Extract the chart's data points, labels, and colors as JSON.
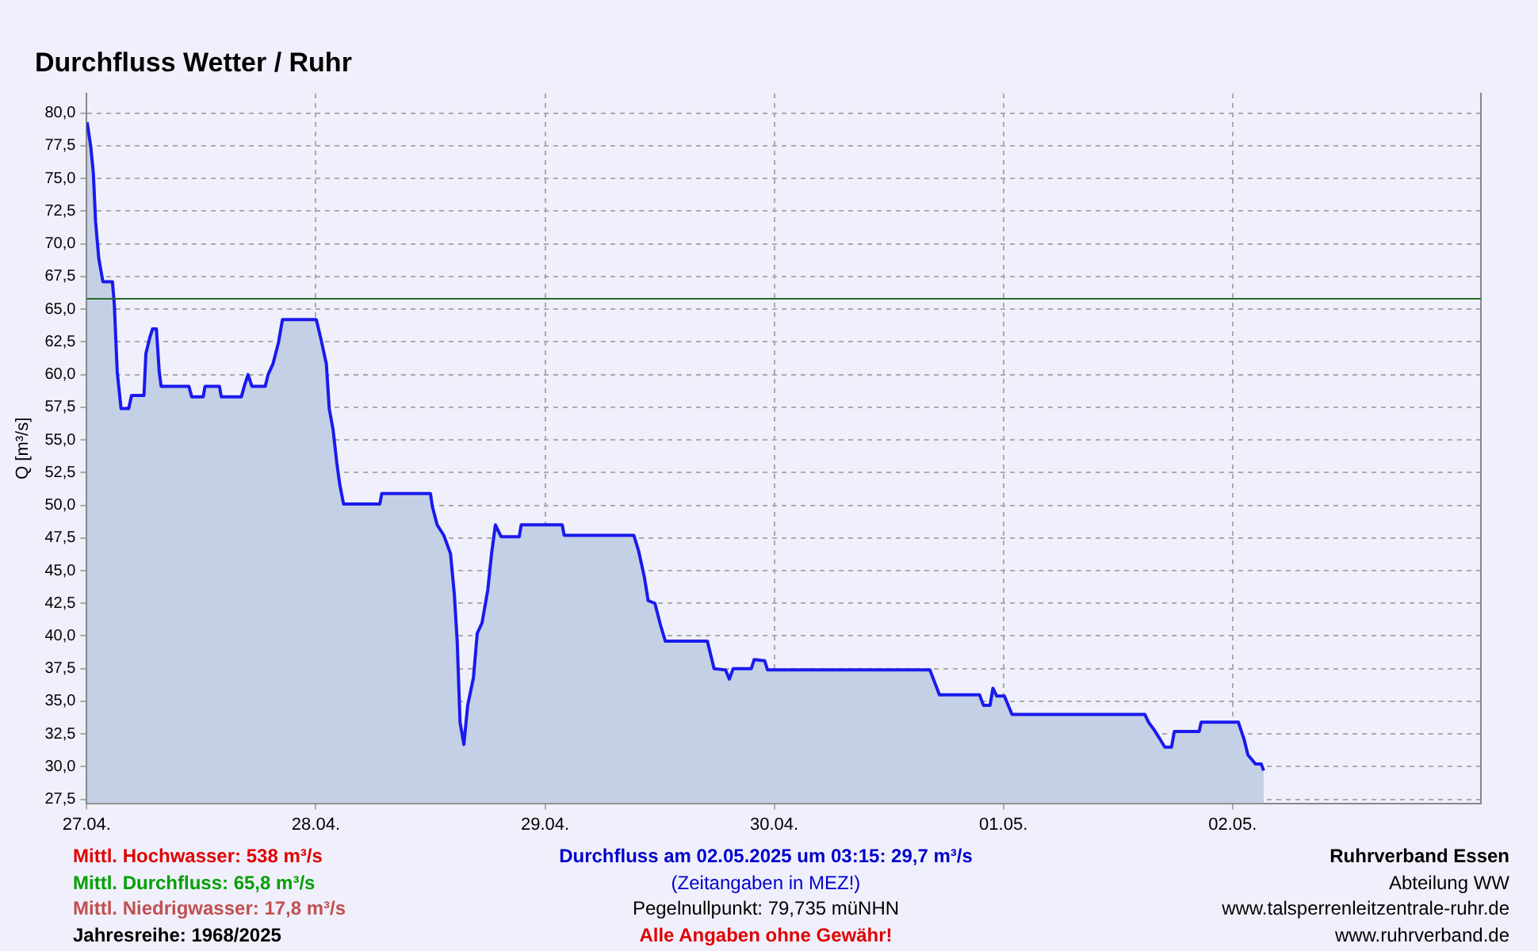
{
  "chart_data": {
    "type": "area",
    "title": "Durchfluss Wetter / Ruhr",
    "ylabel": "Q [m³/s]",
    "x": [
      "2025-04-27T00:03",
      "2025-04-27T00:26",
      "2025-04-27T00:42",
      "2025-04-27T00:56",
      "2025-04-27T01:16",
      "2025-04-27T01:42",
      "2025-04-27T02:42",
      "2025-04-27T02:54",
      "2025-04-27T03:12",
      "2025-04-27T03:36",
      "2025-04-27T04:24",
      "2025-04-27T04:42",
      "2025-04-27T06:00",
      "2025-04-27T06:12",
      "2025-04-27T06:36",
      "2025-04-27T06:54",
      "2025-04-27T07:18",
      "2025-04-27T07:36",
      "2025-04-27T07:48",
      "2025-04-27T10:42",
      "2025-04-27T11:00",
      "2025-04-27T12:12",
      "2025-04-27T12:24",
      "2025-04-27T13:54",
      "2025-04-27T14:06",
      "2025-04-27T16:12",
      "2025-04-27T16:30",
      "2025-04-27T16:54",
      "2025-04-27T17:18",
      "2025-04-27T18:42",
      "2025-04-27T19:00",
      "2025-04-27T19:30",
      "2025-04-27T20:06",
      "2025-04-27T20:30",
      "2025-04-28T00:03",
      "2025-04-28T00:36",
      "2025-04-28T01:06",
      "2025-04-28T01:24",
      "2025-04-28T01:48",
      "2025-04-28T02:12",
      "2025-04-28T02:30",
      "2025-04-28T02:54",
      "2025-04-28T06:42",
      "2025-04-28T06:54",
      "2025-04-28T12:00",
      "2025-04-28T12:12",
      "2025-04-28T12:42",
      "2025-04-28T13:24",
      "2025-04-28T14:06",
      "2025-04-28T14:30",
      "2025-04-28T14:48",
      "2025-04-28T15:06",
      "2025-04-28T15:30",
      "2025-04-28T15:54",
      "2025-04-28T16:30",
      "2025-04-28T16:54",
      "2025-04-28T17:24",
      "2025-04-28T18:00",
      "2025-04-28T18:24",
      "2025-04-28T18:48",
      "2025-04-28T19:24",
      "2025-04-28T21:18",
      "2025-04-28T21:30",
      "2025-04-29T01:48",
      "2025-04-29T02:00",
      "2025-04-29T09:18",
      "2025-04-29T09:48",
      "2025-04-29T10:24",
      "2025-04-29T10:48",
      "2025-04-29T11:30",
      "2025-04-29T12:06",
      "2025-04-29T12:36",
      "2025-04-29T17:00",
      "2025-04-29T17:42",
      "2025-04-29T18:54",
      "2025-04-29T19:18",
      "2025-04-29T19:42",
      "2025-04-29T21:36",
      "2025-04-29T21:54",
      "2025-04-29T23:00",
      "2025-04-29T23:18",
      "2025-04-30T16:18",
      "2025-04-30T17:18",
      "2025-04-30T21:30",
      "2025-04-30T21:54",
      "2025-04-30T22:36",
      "2025-04-30T22:54",
      "2025-04-30T23:18",
      "2025-05-01T00:06",
      "2025-05-01T00:54",
      "2025-05-01T14:48",
      "2025-05-01T15:12",
      "2025-05-01T15:48",
      "2025-05-01T16:24",
      "2025-05-01T16:54",
      "2025-05-01T17:36",
      "2025-05-01T17:54",
      "2025-05-01T20:30",
      "2025-05-01T20:42",
      "2025-05-02T00:36",
      "2025-05-02T01:12",
      "2025-05-02T01:36",
      "2025-05-02T02:24",
      "2025-05-02T03:00",
      "2025-05-02T03:15"
    ],
    "series": [
      {
        "color": "#1a1aee",
        "values": [
          79.3,
          77.4,
          75.4,
          71.7,
          68.9,
          67.1,
          67.1,
          65.3,
          60.2,
          57.4,
          57.4,
          58.4,
          58.4,
          61.6,
          62.8,
          63.5,
          63.5,
          60.2,
          59.1,
          59.1,
          58.3,
          58.3,
          59.1,
          59.1,
          58.3,
          58.3,
          59.1,
          60.0,
          59.1,
          59.1,
          60.0,
          60.8,
          62.5,
          64.2,
          64.2,
          62.5,
          60.8,
          57.4,
          55.8,
          53.2,
          51.6,
          50.1,
          50.1,
          50.9,
          50.9,
          49.9,
          48.5,
          47.7,
          46.3,
          43.2,
          39.6,
          33.4,
          31.7,
          34.7,
          36.8,
          40.2,
          41.0,
          43.5,
          46.3,
          48.5,
          47.6,
          47.6,
          48.5,
          48.5,
          47.7,
          47.7,
          46.5,
          44.5,
          42.7,
          42.5,
          40.8,
          39.6,
          39.6,
          37.5,
          37.4,
          36.7,
          37.5,
          37.5,
          38.2,
          38.1,
          37.4,
          37.4,
          35.5,
          35.5,
          34.7,
          34.7,
          36.0,
          35.4,
          35.4,
          34.0,
          34.0,
          33.4,
          32.8,
          32.1,
          31.5,
          31.5,
          32.7,
          32.7,
          33.4,
          33.4,
          32.1,
          30.9,
          30.2,
          30.2,
          29.7
        ]
      }
    ],
    "xlim": [
      "2025-04-27",
      "2025-05-03T02:00"
    ],
    "xticks": [
      {
        "value": "2025-04-27",
        "label": "27.04."
      },
      {
        "value": "2025-04-28",
        "label": "28.04."
      },
      {
        "value": "2025-04-29",
        "label": "29.04."
      },
      {
        "value": "2025-04-30",
        "label": "30.04."
      },
      {
        "value": "2025-05-01",
        "label": "01.05."
      },
      {
        "value": "2025-05-02",
        "label": "02.05."
      }
    ],
    "ylim": [
      27.2,
      81.5
    ],
    "yticks": [
      {
        "value": 27.5,
        "label": "27,5"
      },
      {
        "value": 30,
        "label": "30,0"
      },
      {
        "value": 32.5,
        "label": "32,5"
      },
      {
        "value": 35,
        "label": "35,0"
      },
      {
        "value": 37.5,
        "label": "37,5"
      },
      {
        "value": 40,
        "label": "40,0"
      },
      {
        "value": 42.5,
        "label": "42,5"
      },
      {
        "value": 45,
        "label": "45,0"
      },
      {
        "value": 47.5,
        "label": "47,5"
      },
      {
        "value": 50,
        "label": "50,0"
      },
      {
        "value": 52.5,
        "label": "52,5"
      },
      {
        "value": 55,
        "label": "55,0"
      },
      {
        "value": 57.5,
        "label": "57,5"
      },
      {
        "value": 60,
        "label": "60,0"
      },
      {
        "value": 62.5,
        "label": "62,5"
      },
      {
        "value": 65,
        "label": "65,0"
      },
      {
        "value": 67.5,
        "label": "67,5"
      },
      {
        "value": 70,
        "label": "70,0"
      },
      {
        "value": 72.5,
        "label": "72,5"
      },
      {
        "value": 75,
        "label": "75,0"
      },
      {
        "value": 77.5,
        "label": "77,5"
      },
      {
        "value": 80,
        "label": "80,0"
      }
    ],
    "ref_lines": [
      {
        "axis": "y",
        "value": 65.8,
        "color": "#2a6a2a"
      }
    ],
    "grid": true,
    "legend": false,
    "marker": "none",
    "line_style": "solid",
    "annotations": [
      "Mittl. Hochwasser: 538 m³/s",
      "Mittl. Durchfluss: 65,8 m³/s",
      "Mittl. Niedrigwasser: 17,8 m³/s",
      "Jahresreihe: 1968/2025",
      "Durchfluss am 02.05.2025 um 03:15: 29,7 m³/s",
      "(Zeitangaben in MEZ!)",
      "Pegelnullpunkt: 79,735 müNHN",
      "Alle Angaben ohne Gewähr!",
      "Ruhrverband Essen",
      "Abteilung WW",
      "www.talsperrenleitzentrale-ruhr.de",
      "www.ruhrverband.de"
    ]
  }
}
